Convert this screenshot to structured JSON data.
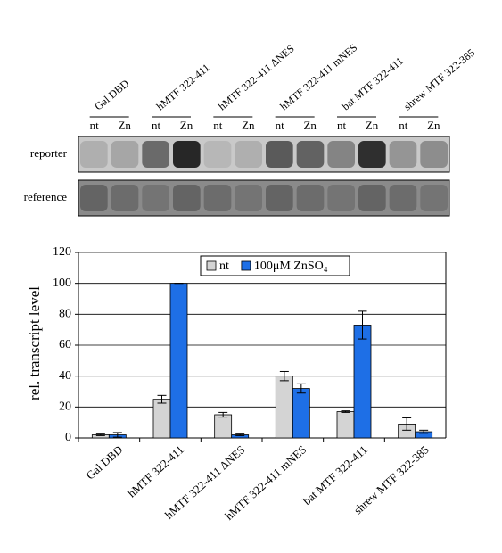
{
  "chart_data": {
    "type": "bar",
    "categories": [
      "Gal DBD",
      "hMTF 322-411",
      "hMTF 322-411 ΔNES",
      "hMTF 322-411 mNES",
      "bat MTF 322-411",
      "shrew MTF 322-385"
    ],
    "series": [
      {
        "name": "nt",
        "color": "#d4d4d4",
        "values": [
          2,
          25,
          15,
          40,
          17,
          9
        ],
        "errors": [
          0.5,
          2.5,
          1.5,
          3,
          0.5,
          4
        ]
      },
      {
        "name": "100μM ZnSO₄",
        "color": "#1e6fe6",
        "values": [
          2,
          100,
          2,
          32,
          73,
          4
        ],
        "errors": [
          1.5,
          0,
          0.5,
          3,
          9,
          1
        ]
      }
    ],
    "y_label": "rel. transcript level",
    "ylim": [
      0,
      120
    ],
    "yticks": [
      0,
      20,
      40,
      60,
      80,
      100,
      120
    ],
    "grid": true,
    "legend": "top"
  },
  "blot": {
    "rows": [
      "reporter",
      "reference"
    ],
    "lane_labels": [
      "nt",
      "Zn"
    ]
  }
}
